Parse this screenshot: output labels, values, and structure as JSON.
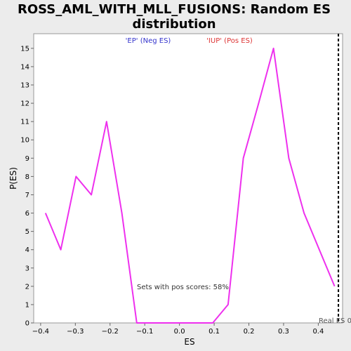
{
  "chart_data": {
    "type": "line",
    "title_line1": "ROSS_AML_WITH_MLL_FUSIONS: Random ES",
    "title_line2": "distribution",
    "xlabel": "ES",
    "ylabel": "P(ES)",
    "xlim": [
      -0.42,
      0.47
    ],
    "ylim": [
      0,
      15.8
    ],
    "xticks": [
      -0.4,
      -0.3,
      -0.2,
      -0.1,
      0.0,
      0.1,
      0.2,
      0.3,
      0.4
    ],
    "xtick_labels": [
      "−0.4",
      "−0.3",
      "−0.2",
      "−0.1",
      "0.0",
      "0.1",
      "0.2",
      "0.3",
      "0.4"
    ],
    "yticks": [
      0,
      1,
      2,
      3,
      4,
      5,
      6,
      7,
      8,
      9,
      10,
      11,
      12,
      13,
      14,
      15
    ],
    "grid": false,
    "series": [
      {
        "color": "#ee30ee",
        "x": [
          -0.386,
          -0.342,
          -0.298,
          -0.254,
          -0.21,
          -0.166,
          -0.123,
          -0.079,
          -0.035,
          0.009,
          0.053,
          0.096,
          0.14,
          0.184,
          0.228,
          0.271,
          0.315,
          0.359,
          0.403,
          0.447
        ],
        "y": [
          6,
          4,
          8,
          7,
          11,
          6,
          0,
          0,
          0,
          0,
          0,
          0,
          1,
          9,
          12,
          15,
          9,
          6,
          4,
          2
        ]
      }
    ],
    "annotations": {
      "neg_label": "'EP' (Neg ES)",
      "neg_color": "#3333cc",
      "pos_label": "'IUP' (Pos ES)",
      "pos_color": "#dd3333",
      "pos_scores_text": "Sets with pos scores: 58%",
      "real_es_text": "Real ES 0",
      "real_es_x": 0.458
    }
  }
}
